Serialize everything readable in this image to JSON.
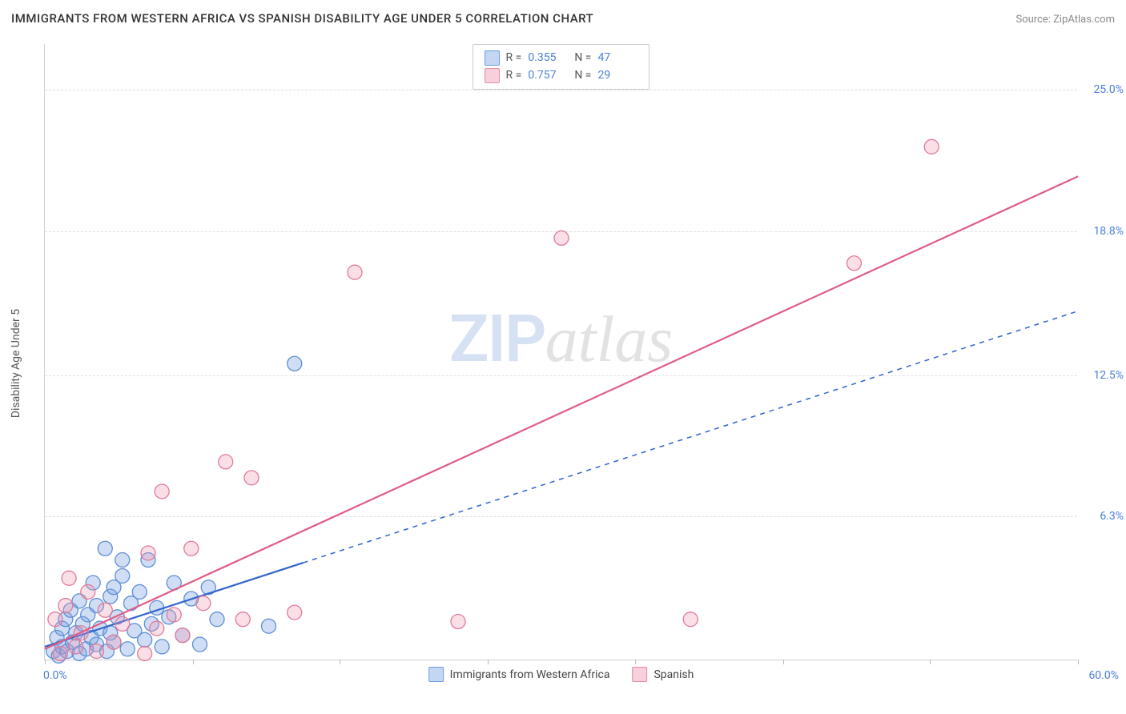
{
  "header": {
    "title": "IMMIGRANTS FROM WESTERN AFRICA VS SPANISH DISABILITY AGE UNDER 5 CORRELATION CHART",
    "source": "Source: ZipAtlas.com"
  },
  "watermark": {
    "part1": "ZIP",
    "part2": "atlas"
  },
  "chart": {
    "type": "scatter",
    "xlabel": "",
    "ylabel": "Disability Age Under 5",
    "xlim": [
      0,
      60
    ],
    "ylim": [
      0,
      27
    ],
    "xlim_labels": {
      "min": "0.0%",
      "max": "60.0%"
    },
    "ytick_labels": [
      "6.3%",
      "12.5%",
      "18.8%",
      "25.0%"
    ],
    "ytick_values": [
      6.3,
      12.5,
      18.8,
      25.0
    ],
    "xtick_values": [
      0,
      8.6,
      17.1,
      25.7,
      34.3,
      42.9,
      51.4,
      60
    ],
    "grid_color": "#e0e0e0",
    "background_color": "#ffffff",
    "series": [
      {
        "name": "Immigrants from Western Africa",
        "color_fill": "rgba(120,160,225,0.35)",
        "color_stroke": "#5d8fd6",
        "swatch_fill": "#c3d6f2",
        "swatch_stroke": "#6b9de0",
        "R": "0.355",
        "N": "47",
        "marker_radius": 9,
        "trend": {
          "x1": 0,
          "y1": 0.6,
          "x2": 60,
          "y2": 15.3,
          "solid_until_x": 15,
          "stroke": "#3366cc",
          "stroke_width": 2.2
        },
        "points": [
          [
            0.5,
            0.4
          ],
          [
            0.7,
            1.0
          ],
          [
            0.8,
            0.2
          ],
          [
            1.0,
            1.4
          ],
          [
            1.0,
            0.6
          ],
          [
            1.2,
            1.8
          ],
          [
            1.3,
            0.4
          ],
          [
            1.5,
            2.2
          ],
          [
            1.6,
            0.8
          ],
          [
            1.8,
            1.2
          ],
          [
            2.0,
            0.3
          ],
          [
            2.0,
            2.6
          ],
          [
            2.2,
            1.6
          ],
          [
            2.4,
            0.5
          ],
          [
            2.5,
            2.0
          ],
          [
            2.7,
            1.0
          ],
          [
            2.8,
            3.4
          ],
          [
            3.0,
            0.7
          ],
          [
            3.0,
            2.4
          ],
          [
            3.2,
            1.4
          ],
          [
            3.5,
            4.9
          ],
          [
            3.6,
            0.4
          ],
          [
            3.8,
            2.8
          ],
          [
            3.8,
            1.2
          ],
          [
            4.0,
            3.2
          ],
          [
            4.0,
            0.8
          ],
          [
            4.2,
            1.9
          ],
          [
            4.5,
            3.7
          ],
          [
            4.5,
            4.4
          ],
          [
            4.8,
            0.5
          ],
          [
            5.0,
            2.5
          ],
          [
            5.2,
            1.3
          ],
          [
            5.5,
            3.0
          ],
          [
            5.8,
            0.9
          ],
          [
            6.0,
            4.4
          ],
          [
            6.2,
            1.6
          ],
          [
            6.5,
            2.3
          ],
          [
            6.8,
            0.6
          ],
          [
            7.2,
            1.9
          ],
          [
            7.5,
            3.4
          ],
          [
            8.0,
            1.1
          ],
          [
            8.5,
            2.7
          ],
          [
            9.0,
            0.7
          ],
          [
            9.5,
            3.2
          ],
          [
            10.0,
            1.8
          ],
          [
            13.0,
            1.5
          ],
          [
            14.5,
            13.0
          ]
        ]
      },
      {
        "name": "Spanish",
        "color_fill": "rgba(240,150,175,0.30)",
        "color_stroke": "#e27a98",
        "swatch_fill": "#f7d0db",
        "swatch_stroke": "#e68aa3",
        "R": "0.757",
        "N": "29",
        "marker_radius": 9,
        "trend": {
          "x1": 0,
          "y1": 0.5,
          "x2": 60,
          "y2": 21.2,
          "solid_until_x": 60,
          "stroke": "#e05c85",
          "stroke_width": 2.2
        },
        "points": [
          [
            0.6,
            1.8
          ],
          [
            0.9,
            0.3
          ],
          [
            1.2,
            2.4
          ],
          [
            1.4,
            3.6
          ],
          [
            1.8,
            0.6
          ],
          [
            2.1,
            1.2
          ],
          [
            2.5,
            3.0
          ],
          [
            3.0,
            0.4
          ],
          [
            3.5,
            2.2
          ],
          [
            4.0,
            0.8
          ],
          [
            4.5,
            1.6
          ],
          [
            5.8,
            0.3
          ],
          [
            6.0,
            4.7
          ],
          [
            6.5,
            1.4
          ],
          [
            6.8,
            7.4
          ],
          [
            7.5,
            2.0
          ],
          [
            8.0,
            1.1
          ],
          [
            8.5,
            4.9
          ],
          [
            9.2,
            2.5
          ],
          [
            10.5,
            8.7
          ],
          [
            11.5,
            1.8
          ],
          [
            12.0,
            8.0
          ],
          [
            14.5,
            2.1
          ],
          [
            18.0,
            17.0
          ],
          [
            24.0,
            1.7
          ],
          [
            30.0,
            18.5
          ],
          [
            37.5,
            1.8
          ],
          [
            47.0,
            17.4
          ],
          [
            51.5,
            22.5
          ]
        ]
      }
    ]
  }
}
